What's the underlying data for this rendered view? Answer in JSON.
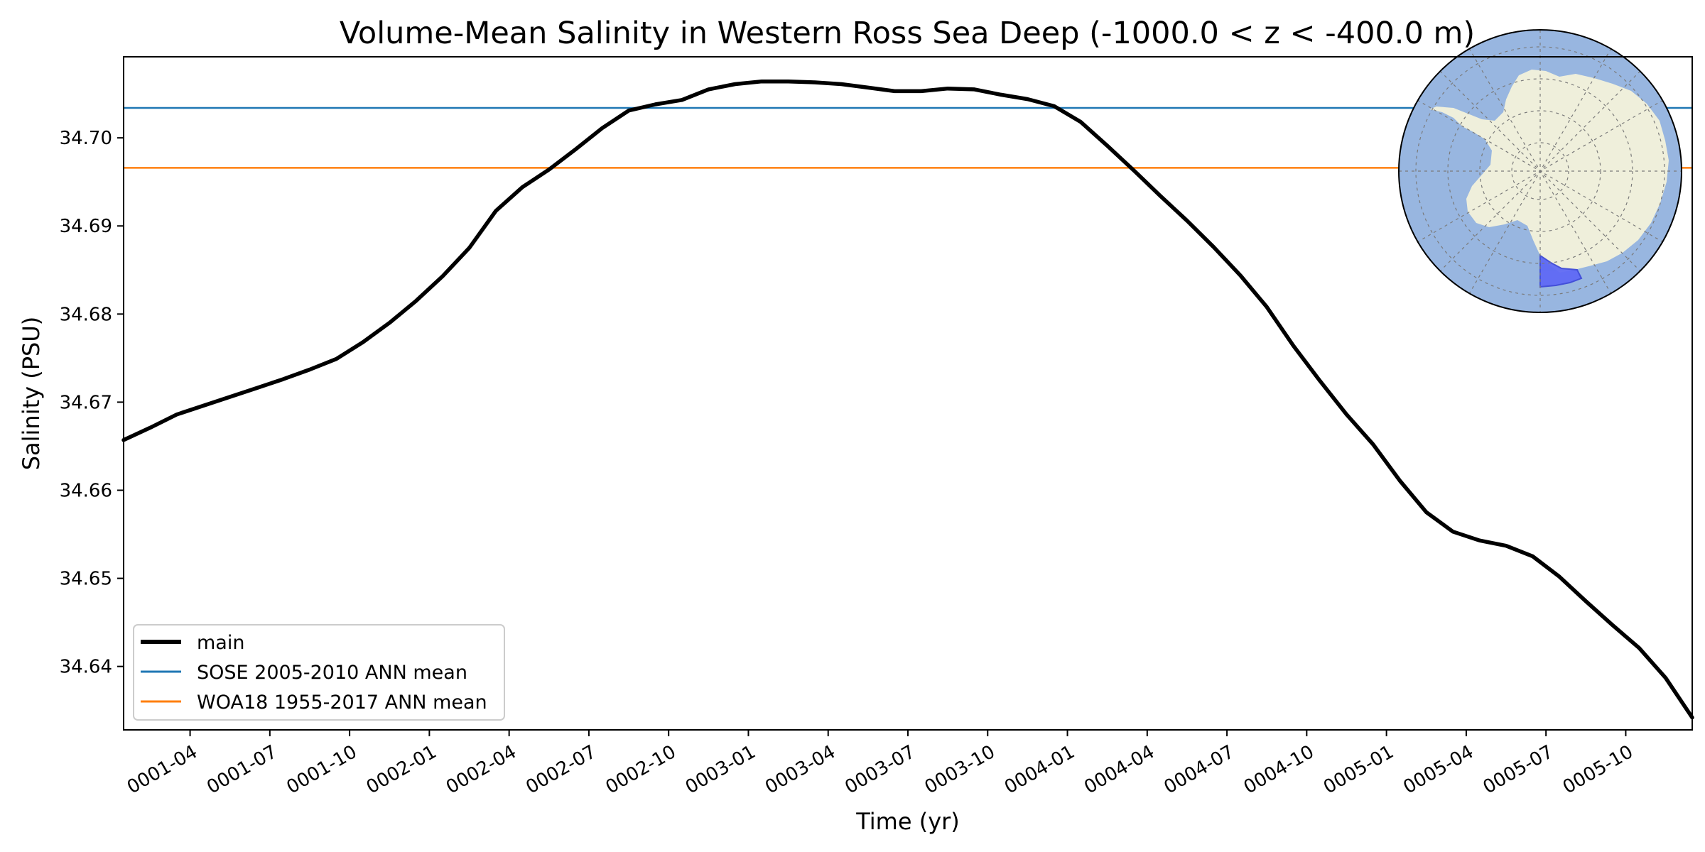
{
  "chart_data": {
    "type": "line",
    "title": "Volume-Mean Salinity in Western Ross Sea Deep (-1000.0 < z < -400.0 m)",
    "xlabel": "Time (yr)",
    "ylabel": "Salinity (PSU)",
    "xlim": [
      0.0,
      59.0
    ],
    "ylim": [
      34.6328,
      34.7092
    ],
    "grid": false,
    "legend_position": "lower-left",
    "x_tick_values": [
      2.5,
      5.5,
      8.5,
      11.5,
      14.5,
      17.5,
      20.5,
      23.5,
      26.5,
      29.5,
      32.5,
      35.5,
      38.5,
      41.5,
      44.5,
      47.5,
      50.5,
      53.5,
      56.5
    ],
    "x_tick_labels": [
      "0001-04",
      "0001-07",
      "0001-10",
      "0002-01",
      "0002-04",
      "0002-07",
      "0002-10",
      "0003-01",
      "0003-04",
      "0003-07",
      "0003-10",
      "0004-01",
      "0004-04",
      "0004-07",
      "0004-10",
      "0005-01",
      "0005-04",
      "0005-07",
      "0005-10"
    ],
    "y_tick_values": [
      34.64,
      34.65,
      34.66,
      34.67,
      34.68,
      34.69,
      34.7
    ],
    "y_tick_labels": [
      "34.64",
      "34.65",
      "34.66",
      "34.67",
      "34.68",
      "34.69",
      "34.70"
    ],
    "series": [
      {
        "name": "main",
        "color": "#000000",
        "style": "thick",
        "x": [
          0,
          1,
          2,
          3,
          4,
          5,
          6,
          7,
          8,
          9,
          10,
          11,
          12,
          13,
          14,
          15,
          16,
          17,
          18,
          19,
          20,
          21,
          22,
          23,
          24,
          25,
          26,
          27,
          28,
          29,
          30,
          31,
          32,
          33,
          34,
          35,
          36,
          37,
          38,
          39,
          40,
          41,
          42,
          43,
          44,
          45,
          46,
          47,
          48,
          49,
          50,
          51,
          52,
          53,
          54,
          55,
          56,
          57,
          58,
          59
        ],
        "values": [
          34.6657,
          34.6671,
          34.6686,
          34.6696,
          34.6706,
          34.6716,
          34.6726,
          34.6737,
          34.6749,
          34.6768,
          34.679,
          34.6815,
          34.6843,
          34.6875,
          34.6917,
          34.6944,
          34.6964,
          34.6987,
          34.7011,
          34.7031,
          34.7038,
          34.7043,
          34.7055,
          34.7061,
          34.7064,
          34.7064,
          34.7063,
          34.7061,
          34.7057,
          34.7053,
          34.7053,
          34.7056,
          34.7055,
          34.7049,
          34.7044,
          34.7036,
          34.7018,
          34.6991,
          34.6963,
          34.6934,
          34.6906,
          34.6876,
          34.6844,
          34.6808,
          34.6764,
          34.6724,
          34.6686,
          34.6652,
          34.6611,
          34.6575,
          34.6553,
          34.6543,
          34.6537,
          34.6525,
          34.6502,
          34.6474,
          34.6447,
          34.6421,
          34.6387,
          34.6342
        ]
      },
      {
        "name": "SOSE 2005-2010 ANN mean",
        "color": "#1f77b4",
        "style": "hline",
        "values": [
          34.7034
        ]
      },
      {
        "name": "WOA18 1955-2017 ANN mean",
        "color": "#ff7f0e",
        "style": "hline",
        "values": [
          34.6966
        ]
      }
    ],
    "inset_map": {
      "description": "south-polar-stereographic-antarctica-region-map",
      "ocean_color": "#98b6e0",
      "land_color": "#efefdb",
      "region_color": "#5f6af5"
    }
  }
}
